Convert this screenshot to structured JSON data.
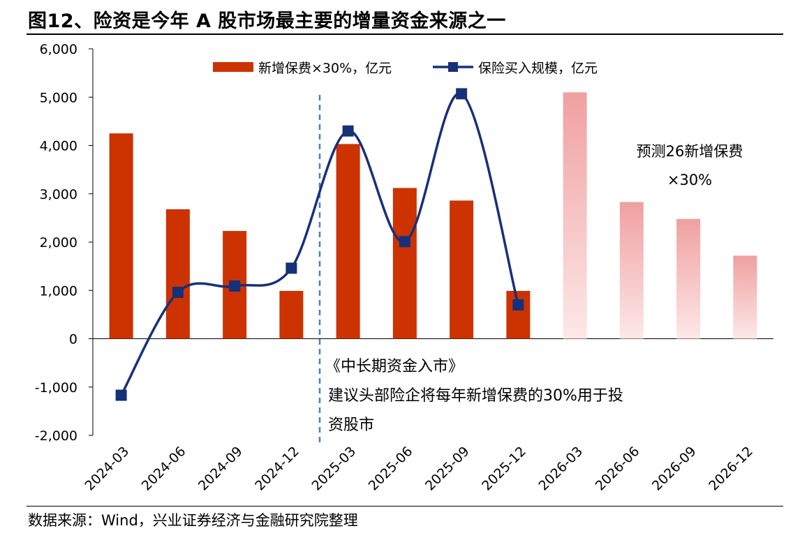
{
  "title": "图12、险资是今年 A 股市场最主要的增量资金来源之一",
  "source": "数据来源：Wind，兴业证券经济与金融研究院整理",
  "colors": {
    "bar": "#cc3300",
    "forecast_top": "#f0a0a0",
    "forecast_bottom": "#fde8e8",
    "line": "#17307a",
    "divider": "#4a7fc1"
  },
  "chart_data": {
    "type": "bar",
    "categories": [
      "2024-03",
      "2024-06",
      "2024-09",
      "2024-12",
      "2025-03",
      "2025-06",
      "2025-09",
      "2025-12",
      "2026-03",
      "2026-06",
      "2026-09",
      "2026-12"
    ],
    "ylim": [
      -2000,
      6000
    ],
    "yticks": [
      -2000,
      -1000,
      0,
      1000,
      2000,
      3000,
      4000,
      5000,
      6000
    ],
    "ytick_labels": [
      "-2,000",
      "-1,000",
      "0",
      "1,000",
      "2,000",
      "3,000",
      "4,000",
      "5,000",
      "6,000"
    ],
    "series": [
      {
        "name": "新增保费×30%，亿元",
        "kind": "bar",
        "values": [
          4250,
          2680,
          2230,
          990,
          4030,
          3120,
          2860,
          990,
          null,
          null,
          null,
          null
        ]
      },
      {
        "name": "预测26新增保费×30%",
        "kind": "bar-forecast",
        "values": [
          null,
          null,
          null,
          null,
          null,
          null,
          null,
          null,
          5100,
          2830,
          2480,
          1720
        ]
      },
      {
        "name": "保险买入规模，亿元",
        "kind": "line",
        "values": [
          -1170,
          960,
          1090,
          1460,
          4300,
          2010,
          5070,
          700,
          null,
          null,
          null,
          null
        ]
      }
    ],
    "legend": [
      "新增保费×30%，亿元",
      "保险买入规模，亿元"
    ],
    "annotations": {
      "forecast_line1": "预测26新增保费",
      "forecast_line2": "×30%",
      "policy_title": "《中长期资金入市》",
      "policy_line1": "建议头部险企将每年新增保费的30%用于投",
      "policy_line2": "资股市"
    }
  }
}
